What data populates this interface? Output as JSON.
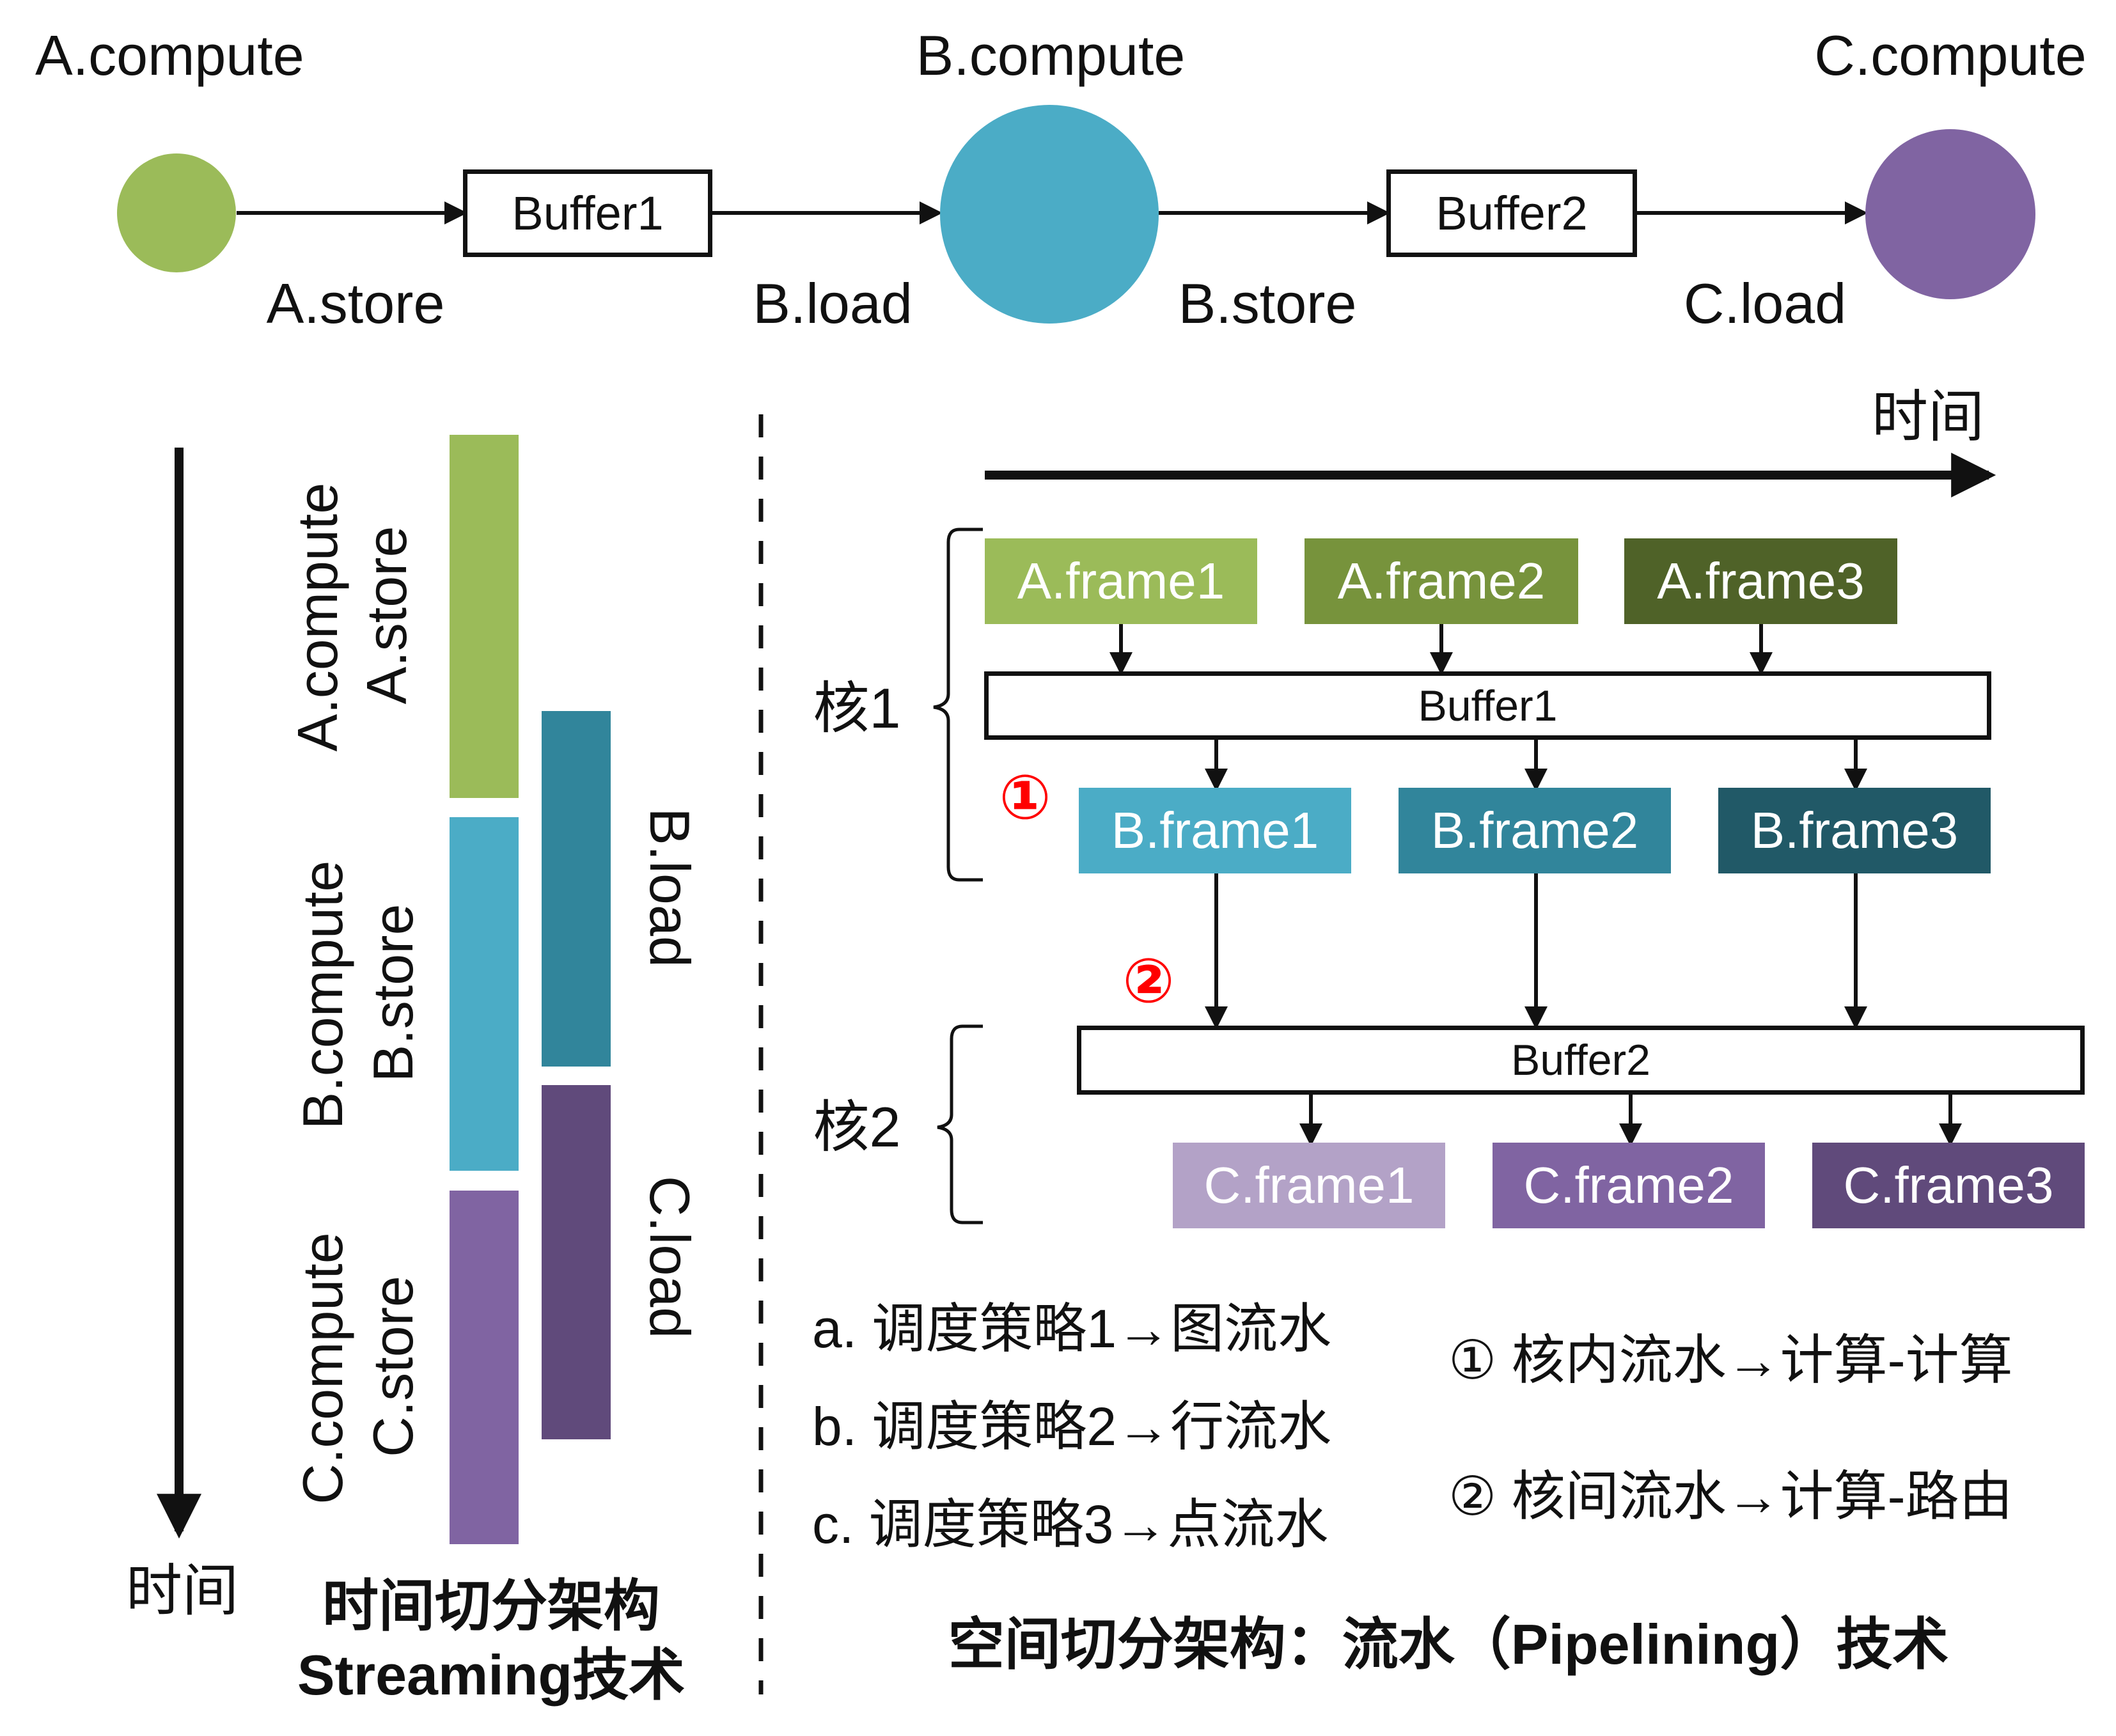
{
  "colors": {
    "green": "#9bbb59",
    "green_mid": "#77933c",
    "green_dark": "#4f6228",
    "blue": "#4bacc6",
    "blue_mid": "#31859b",
    "blue_dark": "#215967",
    "purple_light": "#b3a2c7",
    "purple": "#8064a2",
    "purple_dark": "#604a7b",
    "marker_red": "#ff0000"
  },
  "top_flow": {
    "nodes": [
      {
        "label": "A.compute",
        "color": "#9bbb59"
      },
      {
        "label": "B.compute",
        "color": "#4bacc6"
      },
      {
        "label": "C.compute",
        "color": "#8064a2"
      }
    ],
    "buffers": [
      "Buffer1",
      "Buffer2"
    ],
    "edge_labels": [
      "A.store",
      "B.load",
      "B.store",
      "C.load"
    ]
  },
  "temporal": {
    "axis_label": "时间",
    "bars_compute": [
      {
        "line1": "A.compute",
        "line2": "A.store",
        "color": "#9bbb59"
      },
      {
        "line1": "B.compute",
        "line2": "B.store",
        "color": "#4bacc6"
      },
      {
        "line1": "C.compute",
        "line2": "C.store",
        "color": "#8064a2"
      }
    ],
    "bars_load": [
      {
        "label": "B.load",
        "color": "#31859b"
      },
      {
        "label": "C.load",
        "color": "#604a7b"
      }
    ],
    "caption_line1": "时间切分架构",
    "caption_line2": "Streaming技术"
  },
  "spatial": {
    "time_label": "时间",
    "core1_label": "核1",
    "core2_label": "核2",
    "buffer1": "Buffer1",
    "buffer2": "Buffer2",
    "a_frames": [
      "A.frame1",
      "A.frame2",
      "A.frame3"
    ],
    "b_frames": [
      "B.frame1",
      "B.frame2",
      "B.frame3"
    ],
    "c_frames": [
      "C.frame1",
      "C.frame2",
      "C.frame3"
    ],
    "marker1": "①",
    "marker2": "②",
    "strategies": [
      "a. 调度策略1→图流水",
      "b. 调度策略2→行流水",
      "c. 调度策略3→点流水"
    ],
    "notes": [
      "① 核内流水→计算-计算",
      "② 核间流水→计算-路由"
    ],
    "caption": "空间切分架构：流水（Pipelining）技术"
  }
}
